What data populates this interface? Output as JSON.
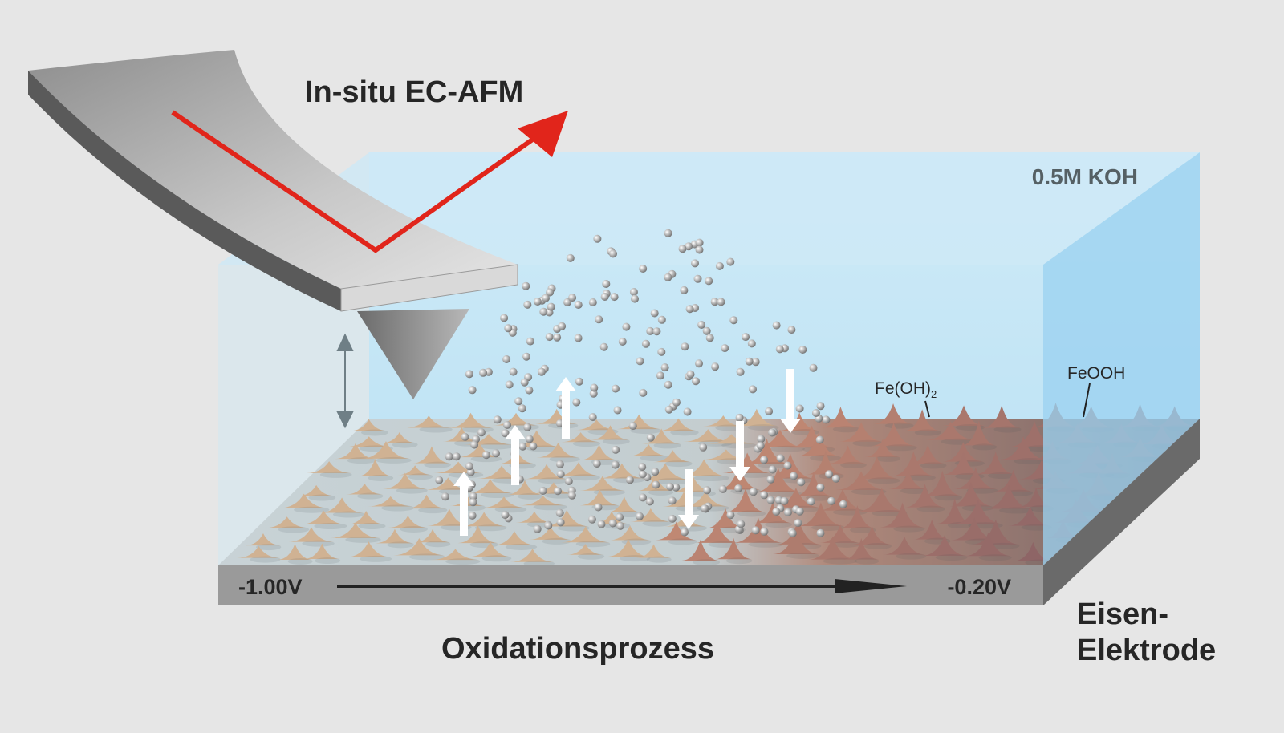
{
  "title": "In-situ EC-AFM",
  "electrolyte": "0.5M KOH",
  "labels": {
    "fe_oh2": {
      "base": "Fe(OH)",
      "subscript": "2"
    },
    "feooh": "FeOOH"
  },
  "potential": {
    "start": "-1.00V",
    "end": "-0.20V"
  },
  "process": "Oxidationsprozess",
  "electrode": [
    "Eisen-",
    "Elektrode"
  ]
}
